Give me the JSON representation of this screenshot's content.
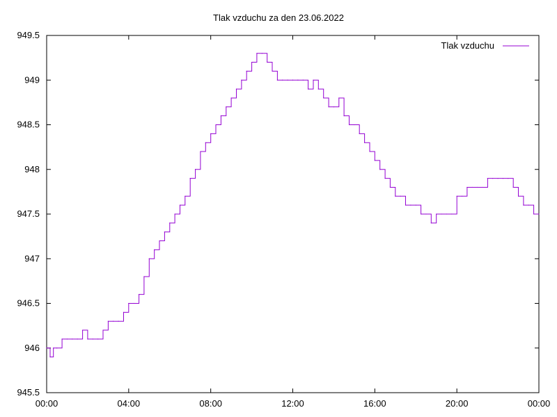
{
  "chart_data": {
    "type": "line",
    "title": "Tlak vzduchu za den 23.06.2022",
    "xlabel": "",
    "ylabel": "",
    "x_unit": "hours",
    "xlim": [
      0,
      24
    ],
    "ylim": [
      945.5,
      949.5
    ],
    "xticks": [
      0,
      4,
      8,
      12,
      16,
      20,
      24
    ],
    "xtick_labels": [
      "00:00",
      "04:00",
      "08:00",
      "12:00",
      "16:00",
      "20:00",
      "00:00"
    ],
    "yticks": [
      945.5,
      946,
      946.5,
      947,
      947.5,
      948,
      948.5,
      949,
      949.5
    ],
    "ytick_labels": [
      "945.5",
      "946",
      "946.5",
      "947",
      "947.5",
      "948",
      "948.5",
      "949",
      "949.5"
    ],
    "grid": false,
    "legend": "top-right",
    "series": [
      {
        "name": "Tlak vzduchu",
        "color": "#9400d3",
        "x": [
          0.0,
          0.17,
          0.33,
          0.5,
          0.75,
          1.0,
          1.25,
          1.5,
          1.75,
          2.0,
          2.25,
          2.5,
          2.75,
          3.0,
          3.25,
          3.5,
          3.75,
          4.0,
          4.25,
          4.5,
          4.75,
          5.0,
          5.25,
          5.5,
          5.75,
          6.0,
          6.25,
          6.5,
          6.75,
          7.0,
          7.25,
          7.5,
          7.75,
          8.0,
          8.25,
          8.5,
          8.75,
          9.0,
          9.25,
          9.5,
          9.75,
          10.0,
          10.25,
          10.5,
          10.75,
          11.0,
          11.25,
          11.5,
          11.75,
          12.0,
          12.25,
          12.5,
          12.75,
          13.0,
          13.25,
          13.5,
          13.75,
          14.0,
          14.25,
          14.5,
          14.75,
          15.0,
          15.25,
          15.5,
          15.75,
          16.0,
          16.25,
          16.5,
          16.75,
          17.0,
          17.25,
          17.5,
          17.75,
          18.0,
          18.25,
          18.5,
          18.75,
          19.0,
          19.25,
          19.5,
          19.75,
          20.0,
          20.25,
          20.5,
          20.75,
          21.0,
          21.25,
          21.5,
          21.75,
          22.0,
          22.25,
          22.5,
          22.75,
          23.0,
          23.25,
          23.5,
          23.75,
          24.0
        ],
        "values": [
          946.0,
          945.9,
          946.0,
          946.0,
          946.1,
          946.1,
          946.1,
          946.1,
          946.2,
          946.1,
          946.1,
          946.1,
          946.2,
          946.3,
          946.3,
          946.3,
          946.4,
          946.5,
          946.5,
          946.6,
          946.8,
          947.0,
          947.1,
          947.2,
          947.3,
          947.4,
          947.5,
          947.6,
          947.7,
          947.9,
          948.0,
          948.2,
          948.3,
          948.4,
          948.5,
          948.6,
          948.7,
          948.8,
          948.9,
          949.0,
          949.1,
          949.2,
          949.3,
          949.3,
          949.2,
          949.1,
          949.0,
          949.0,
          949.0,
          949.0,
          949.0,
          949.0,
          948.9,
          949.0,
          948.9,
          948.8,
          948.7,
          948.7,
          948.8,
          948.6,
          948.5,
          948.5,
          948.4,
          948.3,
          948.2,
          948.1,
          948.0,
          947.9,
          947.8,
          947.7,
          947.7,
          947.6,
          947.6,
          947.6,
          947.5,
          947.5,
          947.4,
          947.5,
          947.5,
          947.5,
          947.5,
          947.7,
          947.7,
          947.8,
          947.8,
          947.8,
          947.8,
          947.9,
          947.9,
          947.9,
          947.9,
          947.9,
          947.8,
          947.7,
          947.6,
          947.6,
          947.5,
          947.5
        ]
      }
    ]
  }
}
